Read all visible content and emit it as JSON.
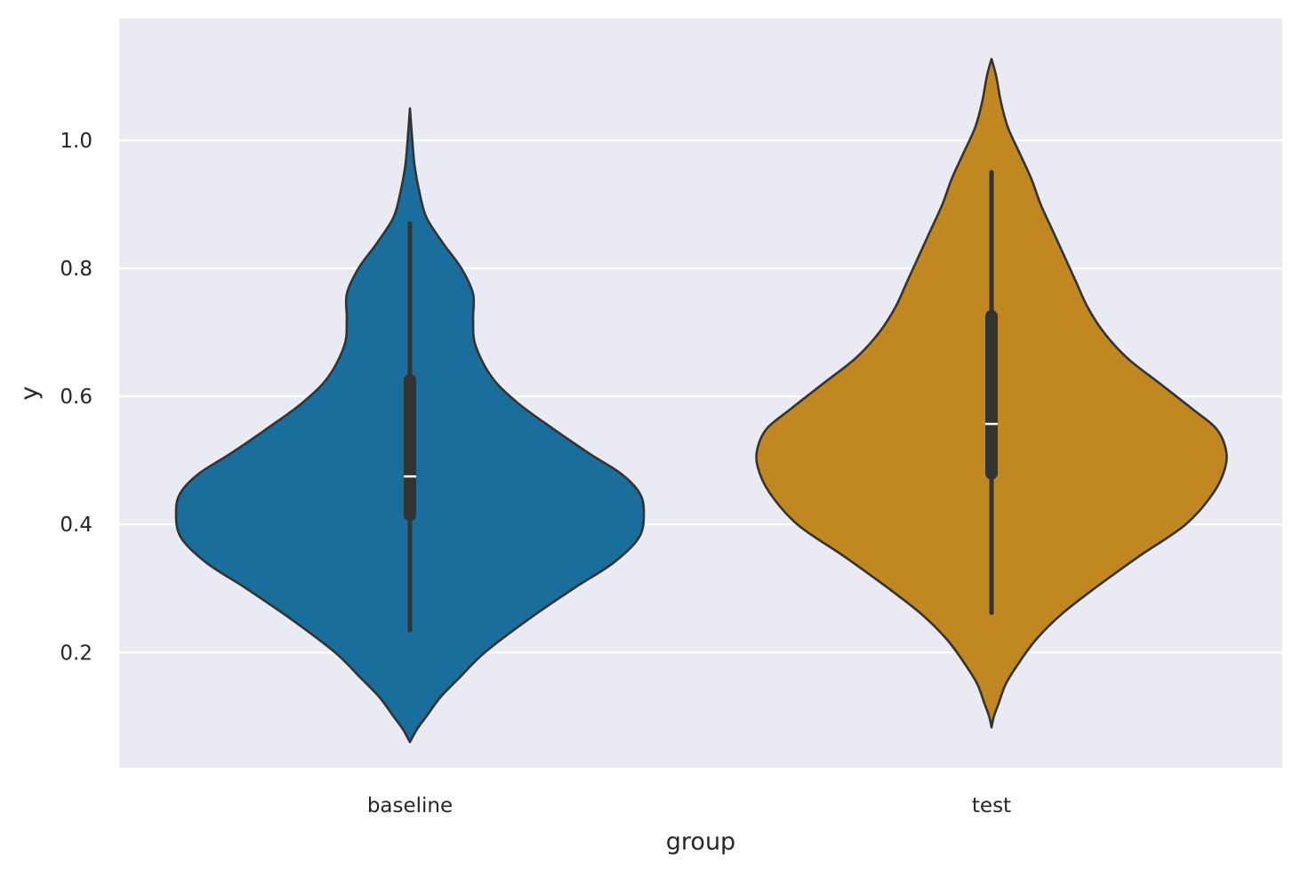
{
  "chart_data": {
    "type": "violin",
    "xlabel": "group",
    "ylabel": "y",
    "categories": [
      "baseline",
      "test"
    ],
    "ylim": [
      0.02,
      1.19
    ],
    "yticks": [
      0.2,
      0.4,
      0.6,
      0.8,
      1.0
    ],
    "ytick_labels": [
      "0.2",
      "0.4",
      "0.6",
      "0.8",
      "1.0"
    ],
    "grid": true,
    "background_color": "#eaeaf2",
    "grid_color": "#ffffff",
    "outline_color": "#333333",
    "groups": [
      {
        "label": "baseline",
        "color": "#1a6e9c",
        "median": 0.475,
        "q1": 0.405,
        "q3": 0.635,
        "whisker_low": 0.235,
        "whisker_high": 0.87,
        "density": [
          [
            0.06,
            0.0
          ],
          [
            0.08,
            0.03
          ],
          [
            0.1,
            0.07
          ],
          [
            0.13,
            0.13
          ],
          [
            0.16,
            0.21
          ],
          [
            0.2,
            0.32
          ],
          [
            0.25,
            0.5
          ],
          [
            0.3,
            0.7
          ],
          [
            0.34,
            0.87
          ],
          [
            0.38,
            0.98
          ],
          [
            0.42,
            1.0
          ],
          [
            0.45,
            0.98
          ],
          [
            0.48,
            0.9
          ],
          [
            0.51,
            0.77
          ],
          [
            0.55,
            0.61
          ],
          [
            0.59,
            0.46
          ],
          [
            0.63,
            0.35
          ],
          [
            0.68,
            0.28
          ],
          [
            0.72,
            0.27
          ],
          [
            0.76,
            0.27
          ],
          [
            0.8,
            0.22
          ],
          [
            0.84,
            0.14
          ],
          [
            0.88,
            0.07
          ],
          [
            0.92,
            0.04
          ],
          [
            0.96,
            0.02
          ],
          [
            1.0,
            0.01
          ],
          [
            1.05,
            0.0
          ]
        ]
      },
      {
        "label": "test",
        "color": "#c18822",
        "median": 0.557,
        "q1": 0.47,
        "q3": 0.735,
        "whisker_low": 0.262,
        "whisker_high": 0.95,
        "density": [
          [
            0.083,
            0.0
          ],
          [
            0.1,
            0.01
          ],
          [
            0.12,
            0.03
          ],
          [
            0.15,
            0.06
          ],
          [
            0.18,
            0.11
          ],
          [
            0.22,
            0.19
          ],
          [
            0.26,
            0.3
          ],
          [
            0.3,
            0.44
          ],
          [
            0.35,
            0.63
          ],
          [
            0.4,
            0.83
          ],
          [
            0.45,
            0.95
          ],
          [
            0.49,
            1.0
          ],
          [
            0.52,
            1.0
          ],
          [
            0.55,
            0.96
          ],
          [
            0.58,
            0.86
          ],
          [
            0.62,
            0.72
          ],
          [
            0.66,
            0.58
          ],
          [
            0.7,
            0.48
          ],
          [
            0.74,
            0.41
          ],
          [
            0.78,
            0.36
          ],
          [
            0.82,
            0.31
          ],
          [
            0.86,
            0.26
          ],
          [
            0.9,
            0.21
          ],
          [
            0.94,
            0.17
          ],
          [
            0.98,
            0.12
          ],
          [
            1.02,
            0.07
          ],
          [
            1.06,
            0.04
          ],
          [
            1.1,
            0.02
          ],
          [
            1.127,
            0.0
          ]
        ]
      }
    ]
  }
}
